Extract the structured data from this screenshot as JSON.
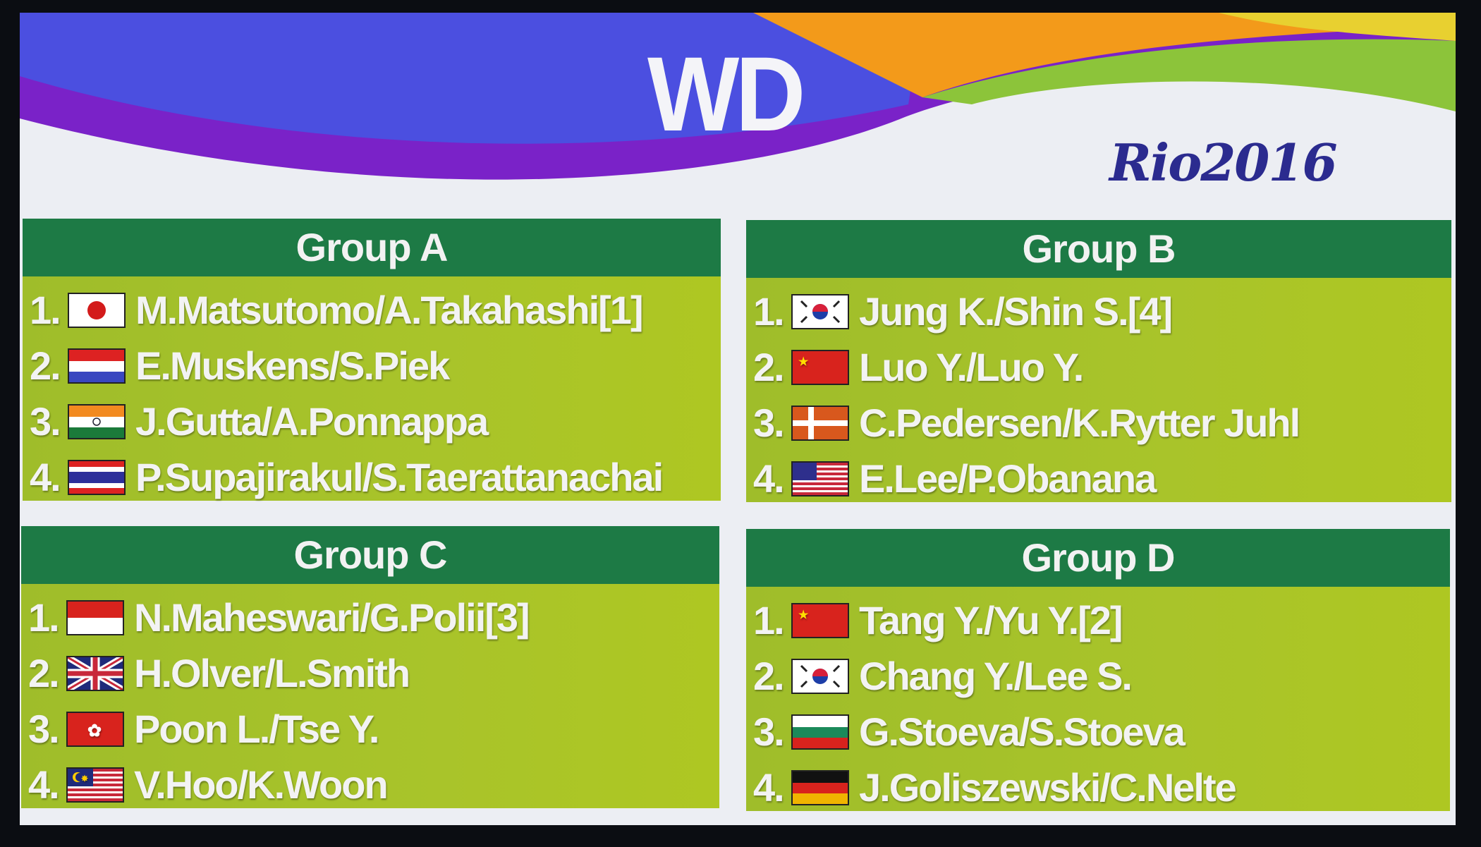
{
  "screen": {
    "title": "WD",
    "logo": "Rio2016",
    "colors": {
      "banner_blue": "#4b4fe0",
      "banner_purple": "#7a22c8",
      "banner_orange": "#f39a1a",
      "banner_green": "#8cc43a",
      "group_header": "#1d7a45",
      "group_body": "#a6c22a",
      "logo": "#2b2b8f"
    }
  },
  "groups": [
    {
      "name": "Group A",
      "entries": [
        {
          "seed": "1.",
          "flag": "japan-flag",
          "team": "M.Matsutomo/A.Takahashi[1]"
        },
        {
          "seed": "2.",
          "flag": "netherlands-flag",
          "team": "E.Muskens/S.Piek"
        },
        {
          "seed": "3.",
          "flag": "india-flag",
          "team": "J.Gutta/A.Ponnappa"
        },
        {
          "seed": "4.",
          "flag": "thailand-flag",
          "team": "P.Supajirakul/S.Taerattanachai"
        }
      ]
    },
    {
      "name": "Group B",
      "entries": [
        {
          "seed": "1.",
          "flag": "korea-flag",
          "team": "Jung K./Shin S.[4]"
        },
        {
          "seed": "2.",
          "flag": "china-flag",
          "team": "Luo Y./Luo Y."
        },
        {
          "seed": "3.",
          "flag": "denmark-flag",
          "team": "C.Pedersen/K.Rytter Juhl"
        },
        {
          "seed": "4.",
          "flag": "usa-flag",
          "team": "E.Lee/P.Obanana"
        }
      ]
    },
    {
      "name": "Group C",
      "entries": [
        {
          "seed": "1.",
          "flag": "indonesia-flag",
          "team": "N.Maheswari/G.Polii[3]"
        },
        {
          "seed": "2.",
          "flag": "uk-flag",
          "team": "H.Olver/L.Smith"
        },
        {
          "seed": "3.",
          "flag": "hong-kong-flag",
          "team": "Poon L./Tse Y."
        },
        {
          "seed": "4.",
          "flag": "malaysia-flag",
          "team": "V.Hoo/K.Woon"
        }
      ]
    },
    {
      "name": "Group D",
      "entries": [
        {
          "seed": "1.",
          "flag": "china-flag",
          "team": "Tang Y./Yu Y.[2]"
        },
        {
          "seed": "2.",
          "flag": "korea-flag",
          "team": "Chang Y./Lee S."
        },
        {
          "seed": "3.",
          "flag": "bulgaria-flag",
          "team": "G.Stoeva/S.Stoeva"
        },
        {
          "seed": "4.",
          "flag": "germany-flag",
          "team": "J.Goliszewski/C.Nelte"
        }
      ]
    }
  ]
}
